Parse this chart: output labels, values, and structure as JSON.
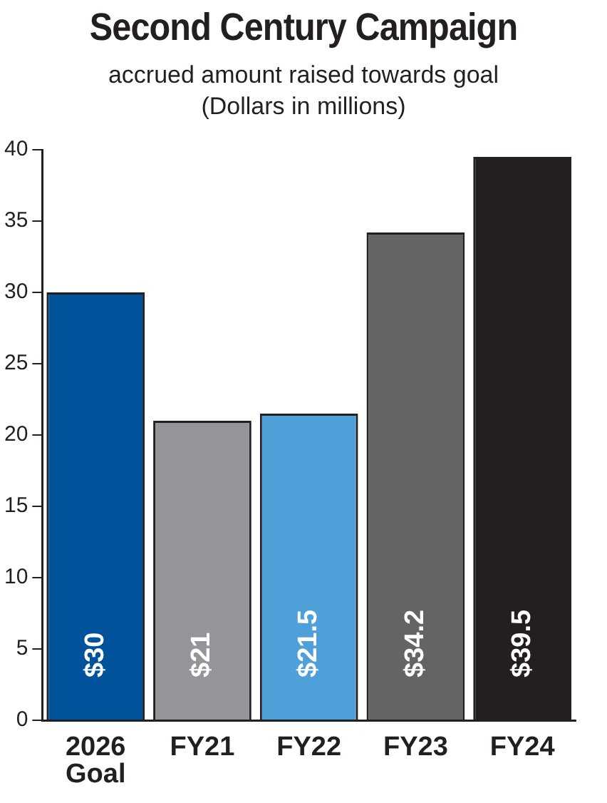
{
  "chart_data": {
    "type": "bar",
    "title": "Second Century Campaign",
    "subtitle": "accrued amount raised towards goal\n(Dollars in millions)",
    "categories": [
      "2026 Goal",
      "FY21",
      "FY22",
      "FY23",
      "FY24"
    ],
    "values": [
      30,
      21,
      21.5,
      34.2,
      39.5
    ],
    "value_labels": [
      "$30",
      "$21",
      "$21.5",
      "$34.2",
      "$39.5"
    ],
    "colors": [
      "#00539b",
      "#939598",
      "#4f9fd8",
      "#636466",
      "#231f20"
    ],
    "ylim": [
      0,
      40
    ],
    "yticks": [
      0,
      5,
      10,
      15,
      20,
      25,
      30,
      35,
      40
    ],
    "grid": false,
    "legend": false
  }
}
